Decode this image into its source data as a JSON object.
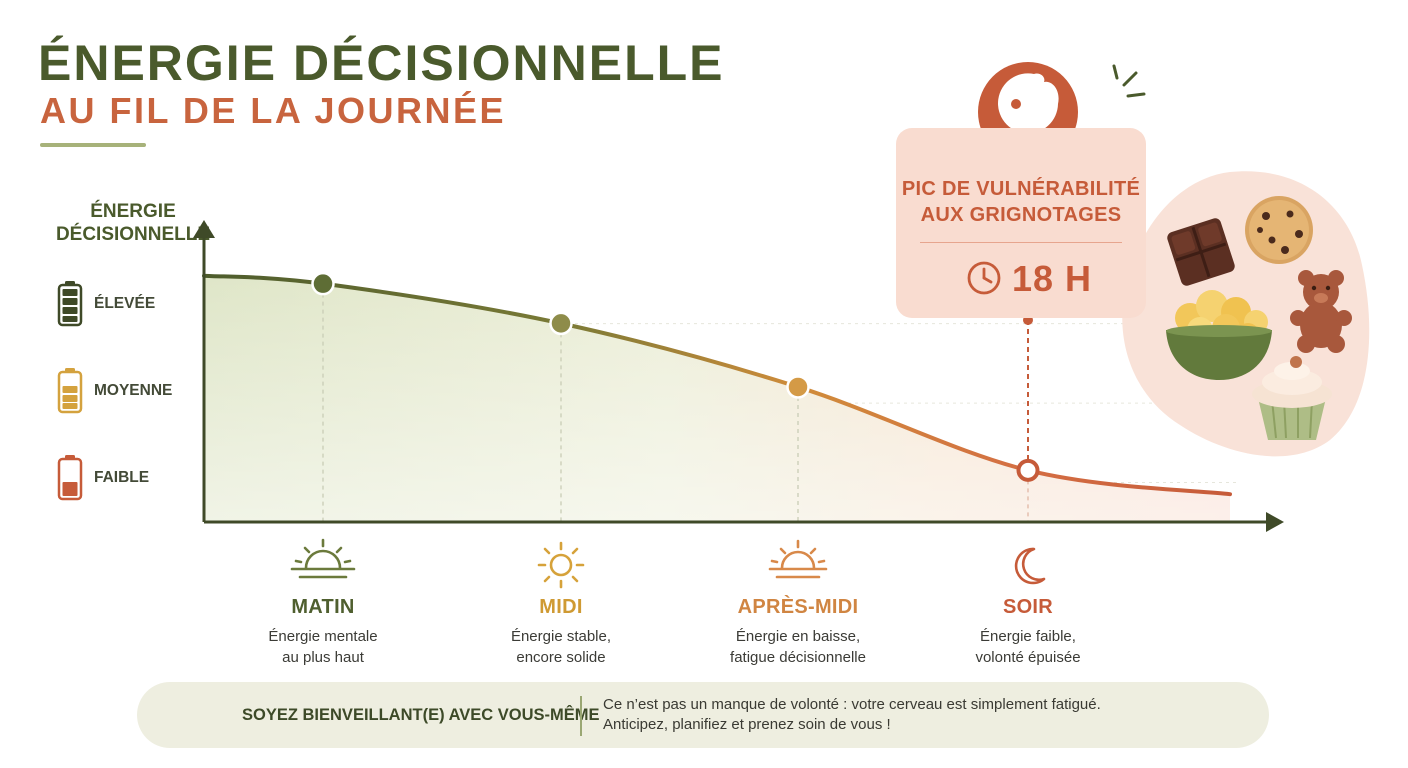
{
  "header": {
    "title_line1": "ÉNERGIE DÉCISIONNELLE",
    "title_line2": "AU FIL DE LA JOURNÉE"
  },
  "chart_data": {
    "type": "area",
    "title": "ÉNERGIE DÉCISIONNELLE AU FIL DE LA JOURNÉE",
    "ylabel_lines": [
      "ÉNERGIE",
      "DÉCISIONNELLE"
    ],
    "y_levels": [
      {
        "label": "ÉLEVÉE",
        "value": 3
      },
      {
        "label": "MOYENNE",
        "value": 2
      },
      {
        "label": "FAIBLE",
        "value": 1
      }
    ],
    "categories": [
      "MATIN",
      "MIDI",
      "APRÈS-MIDI",
      "SOIR"
    ],
    "values": [
      3.0,
      2.5,
      1.7,
      0.65
    ],
    "curve_start": 3.1,
    "curve_end": 0.35,
    "ylim": [
      0,
      3.6
    ],
    "grid": true,
    "highlight_category": "SOIR"
  },
  "periods": [
    {
      "name": "MATIN",
      "desc1": "Énergie mentale",
      "desc2": "au plus haut",
      "color": "#4f5f2f"
    },
    {
      "name": "MIDI",
      "desc1": "Énergie stable,",
      "desc2": "encore solide",
      "color": "#cf9a33"
    },
    {
      "name": "APRÈS-MIDI",
      "desc1": "Énergie en baisse,",
      "desc2": "fatigue décisionnelle",
      "color": "#d08542"
    },
    {
      "name": "SOIR",
      "desc1": "Énergie faible,",
      "desc2": "volonté épuisée",
      "color": "#c65b39"
    }
  ],
  "callout": {
    "title_line1": "PIC DE VULNÉRABILITÉ",
    "title_line2": "AUX GRIGNOTAGES",
    "time": "18 H",
    "icon": "cookie-bite-icon"
  },
  "snacks": [
    "chocolate-icon",
    "cookie-icon",
    "popcorn-bowl-icon",
    "teddy-bear-candy-icon",
    "cupcake-icon"
  ],
  "footer": {
    "title": "SOYEZ BIENVEILLANT(E) AVEC VOUS-MÊME",
    "text_line1": "Ce n’est pas un manque de volonté : votre cerveau est simplement fatigué.",
    "text_line2": "Anticipez, planifiez et prenez soin de vous !"
  },
  "colors": {
    "olive": "#4a5a2c",
    "terracotta": "#c65b39",
    "mustard": "#cf9a33",
    "orange": "#d08542",
    "callout_bg": "#f9dcd0",
    "footer_bg": "#eeeee0"
  }
}
